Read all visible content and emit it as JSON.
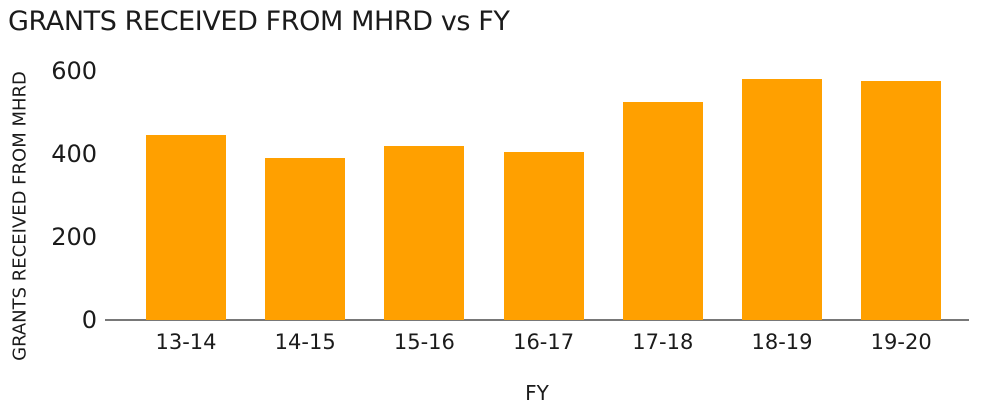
{
  "chart": {
    "title": "GRANTS RECEIVED FROM MHRD vs FY",
    "colors": {
      "bar": "#FFA000",
      "axis_line": "#787878",
      "text": "#1b1b1b",
      "background": "#ffffff"
    }
  },
  "chart_data": {
    "type": "bar",
    "title": "GRANTS RECEIVED FROM MHRD vs FY",
    "xlabel": "FY",
    "ylabel": "GRANTS RECEIVED FROM MHRD",
    "categories": [
      "13-14",
      "14-15",
      "15-16",
      "16-17",
      "17-18",
      "18-19",
      "19-20"
    ],
    "values": [
      445,
      390,
      420,
      405,
      525,
      580,
      575
    ],
    "y_ticks": [
      0,
      200,
      400,
      600
    ],
    "ylim": [
      0,
      600
    ],
    "grid": false,
    "legend": false,
    "bar_color": "#FFA000"
  }
}
